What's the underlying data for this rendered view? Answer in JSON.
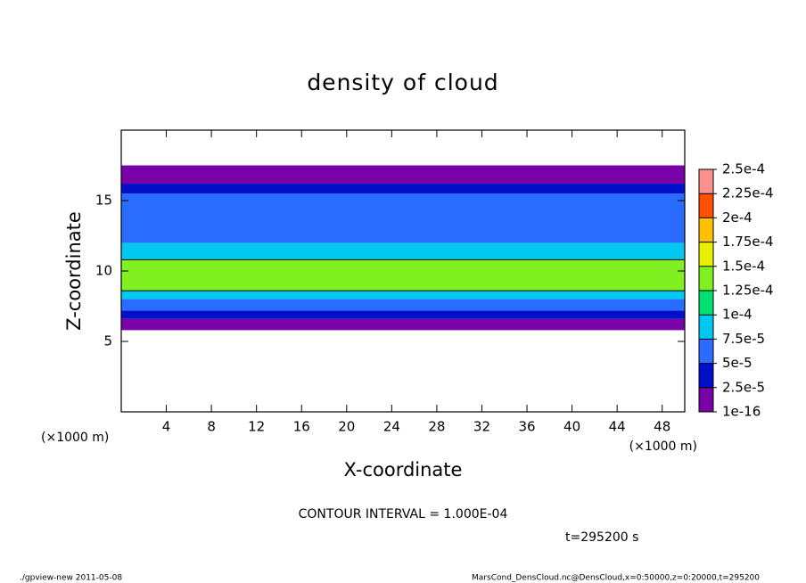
{
  "chart_data": {
    "type": "contour",
    "title": "density of cloud",
    "x_label": "X-coordinate",
    "y_label": "Z-coordinate",
    "x_unit": "(×1000 m)",
    "y_unit": "(×1000 m)",
    "xlim": [
      0,
      50
    ],
    "xticks": [
      4,
      8,
      12,
      16,
      20,
      24,
      28,
      32,
      36,
      40,
      44,
      48
    ],
    "ylim": [
      0,
      20
    ],
    "yticks": [
      5,
      10,
      15
    ],
    "z_edges": [
      5.8,
      6.6,
      7.2,
      8,
      8.6,
      10.8,
      12,
      15.5,
      16.2,
      17.5
    ],
    "values": [
      1e-05,
      3e-05,
      6e-05,
      9e-05,
      0.00013,
      8e-05,
      6e-05,
      3e-05,
      1e-05
    ],
    "contour_interval": 0.0001,
    "contour_label": "CONTOUR INTERVAL = 1.000E-04",
    "time_label": "t=295200 s",
    "colorbar": {
      "ticks": [
        {
          "value": 1e-16,
          "label": "1e-16"
        },
        {
          "value": 2.5e-05,
          "label": "2.5e-5"
        },
        {
          "value": 5e-05,
          "label": "5e-5"
        },
        {
          "value": 7.5e-05,
          "label": "7.5e-5"
        },
        {
          "value": 0.0001,
          "label": "1e-4"
        },
        {
          "value": 0.000125,
          "label": "1.25e-4"
        },
        {
          "value": 0.00015,
          "label": "1.5e-4"
        },
        {
          "value": 0.000175,
          "label": "1.75e-4"
        },
        {
          "value": 0.0002,
          "label": "2e-4"
        },
        {
          "value": 0.000225,
          "label": "2.25e-4"
        },
        {
          "value": 0.00025,
          "label": "2.5e-4"
        }
      ],
      "colors": [
        "#7a00a8",
        "#0010c8",
        "#2a6cff",
        "#00c8f0",
        "#00e070",
        "#80f020",
        "#e8f000",
        "#ffc000",
        "#ff5000",
        "#ff9090"
      ]
    },
    "footer_left": "./gpview-new  2011-05-08",
    "footer_right": "MarsCond_DensCloud.nc@DensCloud,x=0:50000,z=0:20000,t=295200"
  }
}
